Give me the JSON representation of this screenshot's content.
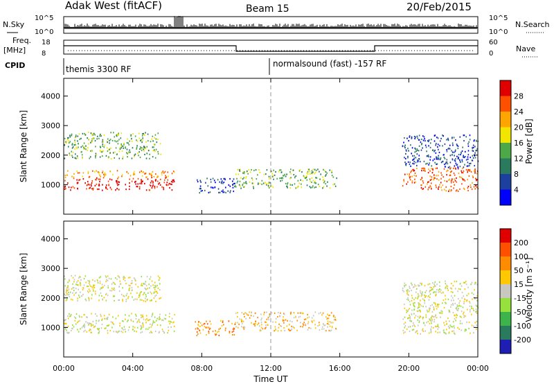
{
  "header": {
    "radar": "Adak West (fitACF)",
    "beam": "Beam 15",
    "date": "20/Feb/2015"
  },
  "top_panels": {
    "nsky_label": "N.Sky",
    "nsky_ticks": [
      "10^5",
      "10^0"
    ],
    "nsearch_label": "N.Search",
    "freq_label_1": "Freq.",
    "freq_label_2": "[MHz]",
    "freq_ticks": [
      "18",
      "8"
    ],
    "nave_label": "Nave",
    "nave_ticks": [
      "60",
      "0"
    ],
    "cpid_label": "CPID",
    "cpid_1": "themis 3300 RF",
    "cpid_2": "normalsound (fast) -157 RF"
  },
  "colors": {
    "power_scale": [
      "#0000ff",
      "#1c3fa0",
      "#2a7a5e",
      "#4da847",
      "#f2e600",
      "#ffa500",
      "#ff5000",
      "#e00000"
    ],
    "velocity_scale": [
      "#1e1eb4",
      "#2a7a5e",
      "#3cb44b",
      "#96e13c",
      "#c8c8c0",
      "#ffc800",
      "#ff8c00",
      "#ff5000",
      "#e00000"
    ],
    "frame": "#000000"
  },
  "chart_data": [
    {
      "type": "heatmap",
      "panel": "power",
      "ylabel": "Slant Range [km]",
      "ylim": [
        0,
        4600
      ],
      "yticks": [
        "4000",
        "3000",
        "2000",
        "1000"
      ],
      "xticks": [
        "00:00",
        "04:00",
        "08:00",
        "12:00",
        "16:00",
        "20:00",
        "00:00"
      ],
      "colorbar_label": "Power [dB]",
      "colorbar_ticks": [
        "28",
        "24",
        "20",
        "16",
        "12",
        "8",
        "4"
      ],
      "scatter_regions": [
        {
          "t0": 0.0,
          "t1": 6.4,
          "r0": 830,
          "r1": 1270,
          "level": 7
        },
        {
          "t0": 0.0,
          "t1": 6.4,
          "r0": 1270,
          "r1": 1500,
          "level": 5
        },
        {
          "t0": 0.0,
          "t1": 5.6,
          "r0": 1900,
          "r1": 2800,
          "level": 3
        },
        {
          "t0": 7.6,
          "t1": 9.9,
          "r0": 750,
          "r1": 1250,
          "level": 1
        },
        {
          "t0": 9.9,
          "t1": 15.8,
          "r0": 900,
          "r1": 1550,
          "level": 3
        },
        {
          "t0": 19.6,
          "t1": 24.0,
          "r0": 800,
          "r1": 1600,
          "level": 6
        },
        {
          "t0": 19.6,
          "t1": 24.0,
          "r0": 1600,
          "r1": 2700,
          "level": 1
        }
      ]
    },
    {
      "type": "heatmap",
      "panel": "velocity",
      "ylabel": "Slant Range [km]",
      "ylim": [
        0,
        4600
      ],
      "yticks": [
        "4000",
        "3000",
        "2000",
        "1000"
      ],
      "xticks": [
        "00:00",
        "04:00",
        "08:00",
        "12:00",
        "16:00",
        "20:00",
        "00:00"
      ],
      "xlabel": "Time UT",
      "colorbar_label": "Velocity [m s⁻¹]",
      "colorbar_ticks": [
        "200",
        "100",
        "50",
        "15",
        "-15",
        "-50",
        "-100",
        "-200"
      ],
      "scatter_regions": [
        {
          "t0": 0.0,
          "t1": 6.4,
          "r0": 830,
          "r1": 1500,
          "level": 4
        },
        {
          "t0": 0.0,
          "t1": 5.6,
          "r0": 1900,
          "r1": 2800,
          "level": 4
        },
        {
          "t0": 7.6,
          "t1": 9.9,
          "r0": 750,
          "r1": 1250,
          "level": 6
        },
        {
          "t0": 9.9,
          "t1": 15.8,
          "r0": 900,
          "r1": 1550,
          "level": 5
        },
        {
          "t0": 19.6,
          "t1": 24.0,
          "r0": 800,
          "r1": 2600,
          "level": 4
        }
      ]
    }
  ]
}
